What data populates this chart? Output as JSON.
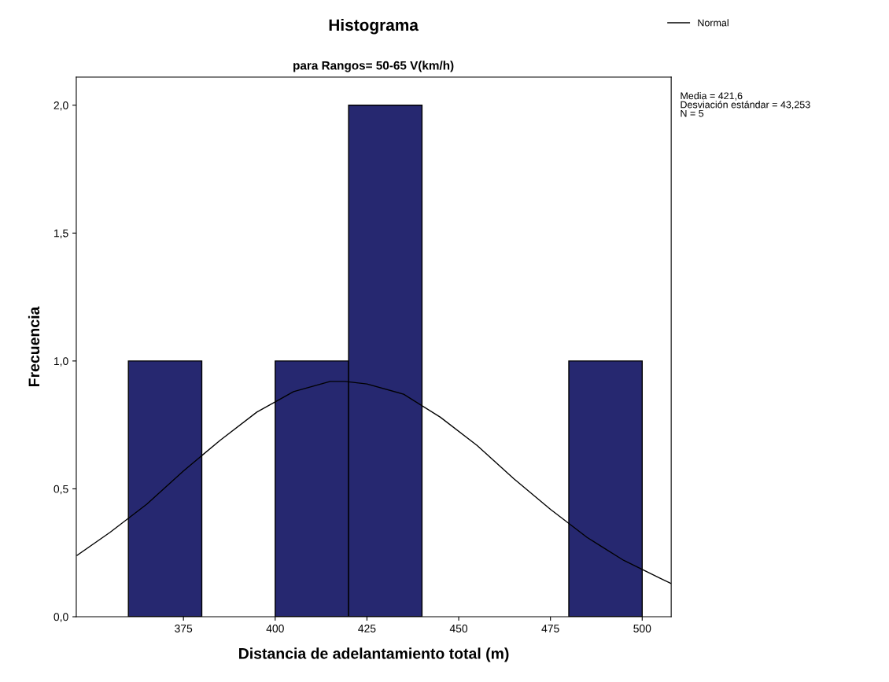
{
  "chart_data": {
    "type": "histogram",
    "title": "Histograma",
    "subtitle": "para Rangos= 50-65 V(km/h)",
    "xlabel": "Distancia de adelantamiento total (m)",
    "ylabel": "Frecuencia",
    "bins": [
      360,
      380,
      400,
      420,
      440,
      460,
      480,
      500
    ],
    "values": [
      1,
      0,
      1,
      2,
      0,
      0,
      1
    ],
    "color": "#262870",
    "series": [
      {
        "type": "line",
        "name": "Normal",
        "color": "#000000",
        "x": [
          346,
          355,
          365,
          375,
          385,
          395,
          405,
          415,
          419,
          425,
          435,
          445,
          455,
          465,
          475,
          485,
          495,
          505,
          507.9
        ],
        "values": [
          0.24,
          0.33,
          0.44,
          0.57,
          0.69,
          0.8,
          0.88,
          0.92,
          0.92,
          0.91,
          0.87,
          0.78,
          0.67,
          0.54,
          0.42,
          0.31,
          0.22,
          0.15,
          0.13
        ]
      }
    ],
    "xlim": [
      345.8,
      507.9
    ],
    "xticks": [
      375,
      400,
      425,
      450,
      475,
      500
    ],
    "ylim": [
      0,
      2.11
    ],
    "yticks": [
      {
        "value": 0,
        "label": "0,0"
      },
      {
        "value": 0.5,
        "label": "0,5"
      },
      {
        "value": 1.0,
        "label": "1,0"
      },
      {
        "value": 1.5,
        "label": "1,5"
      },
      {
        "value": 2.0,
        "label": "2,0"
      }
    ],
    "annotations": [
      "Media = 421,6\nDesviación estándar = 43,253\nN = 5"
    ],
    "grid": false,
    "legend": "top right",
    "marker": "none",
    "line_style": "solid"
  }
}
